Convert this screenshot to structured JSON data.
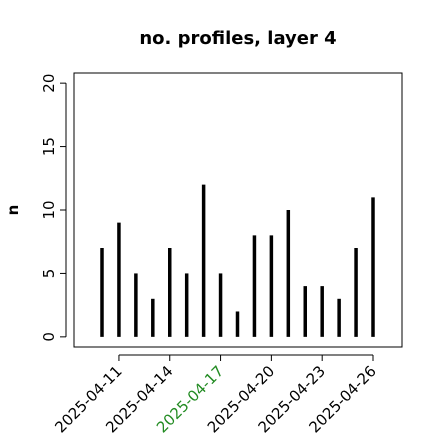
{
  "chart_data": {
    "type": "bar",
    "title": "no. profiles, layer 4",
    "ylabel": "n",
    "categories": [
      null,
      "2025-04-11",
      null,
      null,
      "2025-04-14",
      null,
      null,
      "2025-04-17",
      null,
      null,
      "2025-04-20",
      null,
      null,
      "2025-04-23",
      null,
      null,
      "2025-04-26"
    ],
    "label_colors": [
      null,
      "#000000",
      null,
      null,
      "#000000",
      null,
      null,
      "#228b22",
      null,
      null,
      "#000000",
      null,
      null,
      "#000000",
      null,
      null,
      "#000000"
    ],
    "values": [
      7,
      9,
      5,
      3,
      7,
      5,
      12,
      5,
      2,
      8,
      8,
      10,
      4,
      4,
      3,
      7,
      11
    ],
    "color": "#000000",
    "ylim": [
      -0.8,
      20.8
    ],
    "yticks": [
      0,
      5,
      10,
      15,
      20
    ]
  }
}
